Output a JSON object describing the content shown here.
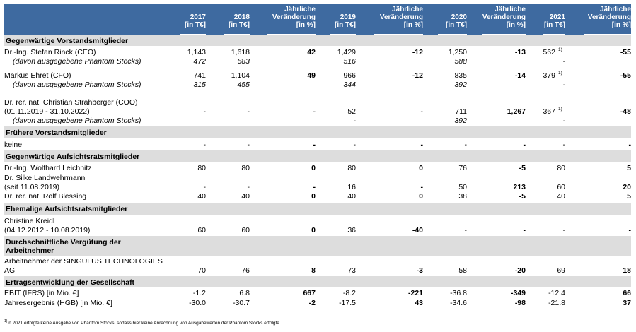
{
  "header": {
    "columns": [
      {
        "line1": "",
        "line2": "2017",
        "line3": "[in T€]"
      },
      {
        "line1": "",
        "line2": "2018",
        "line3": "[in T€]"
      },
      {
        "line1": "Jährliche",
        "line2": "Veränderung",
        "line3": "[in %]"
      },
      {
        "line1": "",
        "line2": "2019",
        "line3": "[in T€]"
      },
      {
        "line1": "Jährliche",
        "line2": "Veränderung",
        "line3": "[in %]"
      },
      {
        "line1": "",
        "line2": "2020",
        "line3": "[in T€]"
      },
      {
        "line1": "Jährliche",
        "line2": "Veränderung",
        "line3": "[in %]"
      },
      {
        "line1": "",
        "line2": "2021",
        "line3": "[in T€]"
      },
      {
        "line1": "Jährliche",
        "line2": "Veränderung",
        "line3": "[in %]"
      }
    ]
  },
  "sections": {
    "s1": "Gegenwärtige Vorstandsmitglieder",
    "s2": "Frühere Vorstandsmitglieder",
    "s3": "Gegenwärtige Aufsichtsratsmitglieder",
    "s4": "Ehemalige Aufsichtsratsmitglieder",
    "s5a": "Durchschnittliche Vergütung der",
    "s5b": "Arbeitnehmer",
    "s6": "Ertragsentwicklung der Gesellschaft"
  },
  "rows": {
    "rinck": {
      "l1": "Dr.-Ing. Stefan Rinck (CEO)",
      "v": [
        "1,143",
        "1,618",
        "42",
        "1,429",
        "-12",
        "1,250",
        "-13",
        "562",
        "-55"
      ],
      "sup": "1)"
    },
    "rinck_p": {
      "l1": "(davon ausgegebene Phantom Stocks)",
      "v": [
        "472",
        "683",
        "",
        "516",
        "",
        "588",
        "",
        "-",
        ""
      ]
    },
    "ehret": {
      "l1": "Markus Ehret (CFO)",
      "v": [
        "741",
        "1,104",
        "49",
        "966",
        "-12",
        "835",
        "-14",
        "379",
        "-55"
      ],
      "sup": "1)"
    },
    "ehret_p": {
      "l1": "(davon ausgegebene Phantom Stocks)",
      "v": [
        "315",
        "455",
        "",
        "344",
        "",
        "392",
        "",
        "-",
        ""
      ]
    },
    "strah": {
      "l1": "Dr. rer. nat. Christian Strahberger (COO)",
      "l2": "(01.11.2019 - 31.10.2022)",
      "v": [
        "-",
        "-",
        "-",
        "52",
        "-",
        "711",
        "1,267",
        "367",
        "-48"
      ],
      "sup": "1)"
    },
    "strah_p": {
      "l1": "(davon ausgegebene Phantom Stocks)",
      "v": [
        "",
        "",
        "",
        "-",
        "",
        "392",
        "",
        "-",
        ""
      ]
    },
    "keine": {
      "l1": "keine",
      "v": [
        "-",
        "-",
        "-",
        "-",
        "-",
        "-",
        "-",
        "-",
        "-"
      ]
    },
    "leich": {
      "l1": "Dr.-Ing. Wolfhard Leichnitz",
      "v": [
        "80",
        "80",
        "0",
        "80",
        "0",
        "76",
        "-5",
        "80",
        "5"
      ]
    },
    "landw": {
      "l1": "Dr. Silke Landwehrmann",
      "l2": "(seit 11.08.2019)",
      "v": [
        "-",
        "-",
        "-",
        "16",
        "-",
        "50",
        "213",
        "60",
        "20"
      ]
    },
    "bless": {
      "l1": "Dr. rer. nat. Rolf Blessing",
      "v": [
        "40",
        "40",
        "0",
        "40",
        "0",
        "38",
        "-5",
        "40",
        "5"
      ]
    },
    "kreidl": {
      "l1": "Christine Kreidl",
      "l2": "(04.12.2012 - 10.08.2019)",
      "v": [
        "60",
        "60",
        "0",
        "36",
        "-40",
        "-",
        "-",
        "-",
        "-"
      ]
    },
    "arbeit": {
      "l1": "Arbeitnehmer der SINGULUS TECHNOLOGIES",
      "l2": "AG",
      "v": [
        "70",
        "76",
        "8",
        "73",
        "-3",
        "58",
        "-20",
        "69",
        "18"
      ]
    },
    "ebit": {
      "l1": "EBIT (IFRS) [in Mio. €]",
      "v": [
        "-1.2",
        "6.8",
        "667",
        "-8.2",
        "-221",
        "-36.8",
        "-349",
        "-12.4",
        "66"
      ]
    },
    "jahres": {
      "l1": "Jahresergebnis (HGB) [in Mio. €]",
      "v": [
        "-30.0",
        "-30.7",
        "-2",
        "-17.5",
        "43",
        "-34.6",
        "-98",
        "-21.8",
        "37"
      ]
    }
  },
  "footnote": {
    "mark": "1)",
    "text": "In 2021 erfolgte keine Ausgabe von Phantom Stocks, sodass hier keine Anrechnung von Ausgabewerten der Phantom Stocks erfolgte"
  }
}
